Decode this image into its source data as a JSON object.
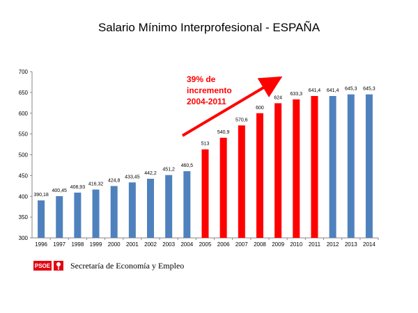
{
  "title": "Salario Mínimo Interprofesional - ESPAÑA",
  "chart_data": {
    "type": "bar",
    "categories": [
      "1996",
      "1997",
      "1998",
      "1999",
      "2000",
      "2001",
      "2002",
      "2003",
      "2004",
      "2005",
      "2006",
      "2007",
      "2008",
      "2009",
      "2010",
      "2011",
      "2012",
      "2013",
      "2014"
    ],
    "values": [
      390.18,
      400.45,
      408.93,
      416.32,
      424.8,
      433.45,
      442.2,
      451.2,
      460.5,
      513,
      540.9,
      570.6,
      600,
      624,
      633.3,
      641.4,
      641.4,
      645.3,
      645.3
    ],
    "value_labels": [
      "390,18",
      "400,45",
      "408,93",
      "416,32",
      "424,8",
      "433,45",
      "442,2",
      "451,2",
      "460,5",
      "513",
      "540,9",
      "570,6",
      "600",
      "624",
      "633,3",
      "641,4",
      "641,4",
      "645,3",
      "645,3"
    ],
    "highlight_range": [
      "2005",
      "2011"
    ],
    "colors": {
      "base": "#4f81bd",
      "highlight": "#ff0000",
      "annotation": "#ff0000"
    },
    "ylim": [
      300,
      700
    ],
    "yticks": [
      300,
      350,
      400,
      450,
      500,
      550,
      600,
      650,
      700
    ],
    "grid": false,
    "legend": "none",
    "annotation": {
      "lines": [
        "39%  de",
        "incremento",
        "2004-2011"
      ],
      "arrow": true
    }
  },
  "footer": {
    "logo_text": "PSOE",
    "organization": "Secretaría de Economía y Empleo"
  }
}
